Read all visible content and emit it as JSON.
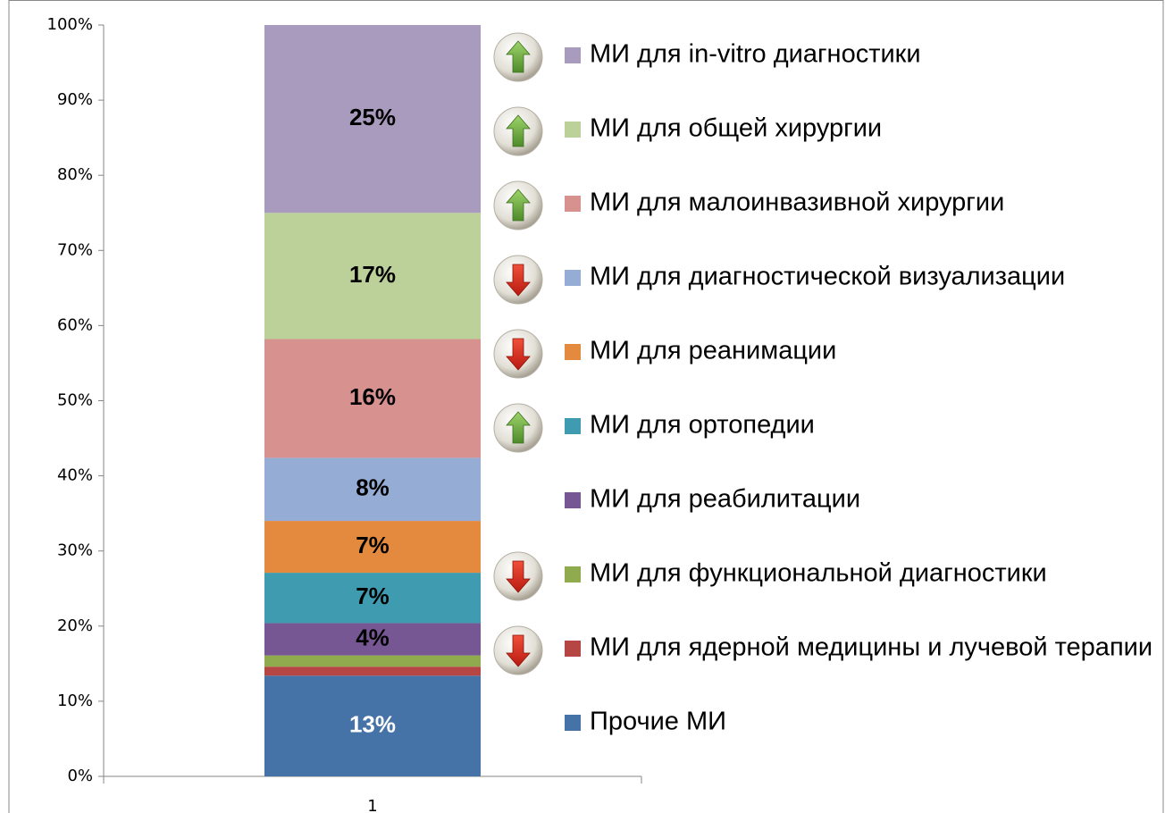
{
  "chart_data": {
    "type": "stacked_bar",
    "categories": [
      "1"
    ],
    "ylim": [
      0,
      100
    ],
    "yticks": [
      {
        "value": 0,
        "label": "0%"
      },
      {
        "value": 10,
        "label": "10%"
      },
      {
        "value": 20,
        "label": "20%"
      },
      {
        "value": 30,
        "label": "30%"
      },
      {
        "value": 40,
        "label": "40%"
      },
      {
        "value": 50,
        "label": "50%"
      },
      {
        "value": 60,
        "label": "60%"
      },
      {
        "value": 70,
        "label": "70%"
      },
      {
        "value": 80,
        "label": "80%"
      },
      {
        "value": 90,
        "label": "90%"
      },
      {
        "value": 100,
        "label": "100%"
      }
    ],
    "legend": "right",
    "series": [
      {
        "name": "Прочие МИ",
        "color": "#4673a7",
        "values": [
          13.4
        ],
        "value_labels": [
          "13%"
        ],
        "label_color": "#ffffff"
      },
      {
        "name": "МИ для ядерной медицины и лучевой терапии",
        "color": "#b64643",
        "values": [
          1.2
        ],
        "trend": "down"
      },
      {
        "name": "МИ для функциональной диагностики",
        "color": "#8fab4e",
        "values": [
          1.5
        ],
        "trend": "down"
      },
      {
        "name": "МИ для реабилитации",
        "color": "#765793",
        "values": [
          4.3
        ],
        "value_labels": [
          "4%"
        ],
        "label_color": "#000000"
      },
      {
        "name": "МИ для ортопедии",
        "color": "#3f9cb0",
        "values": [
          6.7
        ],
        "value_labels": [
          "7%"
        ],
        "label_color": "#000000",
        "trend": "up"
      },
      {
        "name": "МИ для реанимации",
        "color": "#e38a3f",
        "values": [
          6.9
        ],
        "value_labels": [
          "7%"
        ],
        "label_color": "#000000",
        "trend": "down"
      },
      {
        "name": "МИ для диагностической визуализации",
        "color": "#95acd5",
        "values": [
          8.4
        ],
        "value_labels": [
          "8%"
        ],
        "label_color": "#000000",
        "trend": "down"
      },
      {
        "name": "МИ для малоинвазивной хирургии",
        "color": "#d7918f",
        "values": [
          15.8
        ],
        "value_labels": [
          "16%"
        ],
        "label_color": "#000000",
        "trend": "up"
      },
      {
        "name": "МИ для общей хирургии",
        "color": "#bcd19a",
        "values": [
          16.8
        ],
        "value_labels": [
          "17%"
        ],
        "label_color": "#000000",
        "trend": "up"
      },
      {
        "name": "МИ для in-vitro диагностики",
        "color": "#a99bbd",
        "values": [
          25
        ],
        "value_labels": [
          "25%"
        ],
        "label_color": "#000000",
        "trend": "up"
      }
    ]
  }
}
